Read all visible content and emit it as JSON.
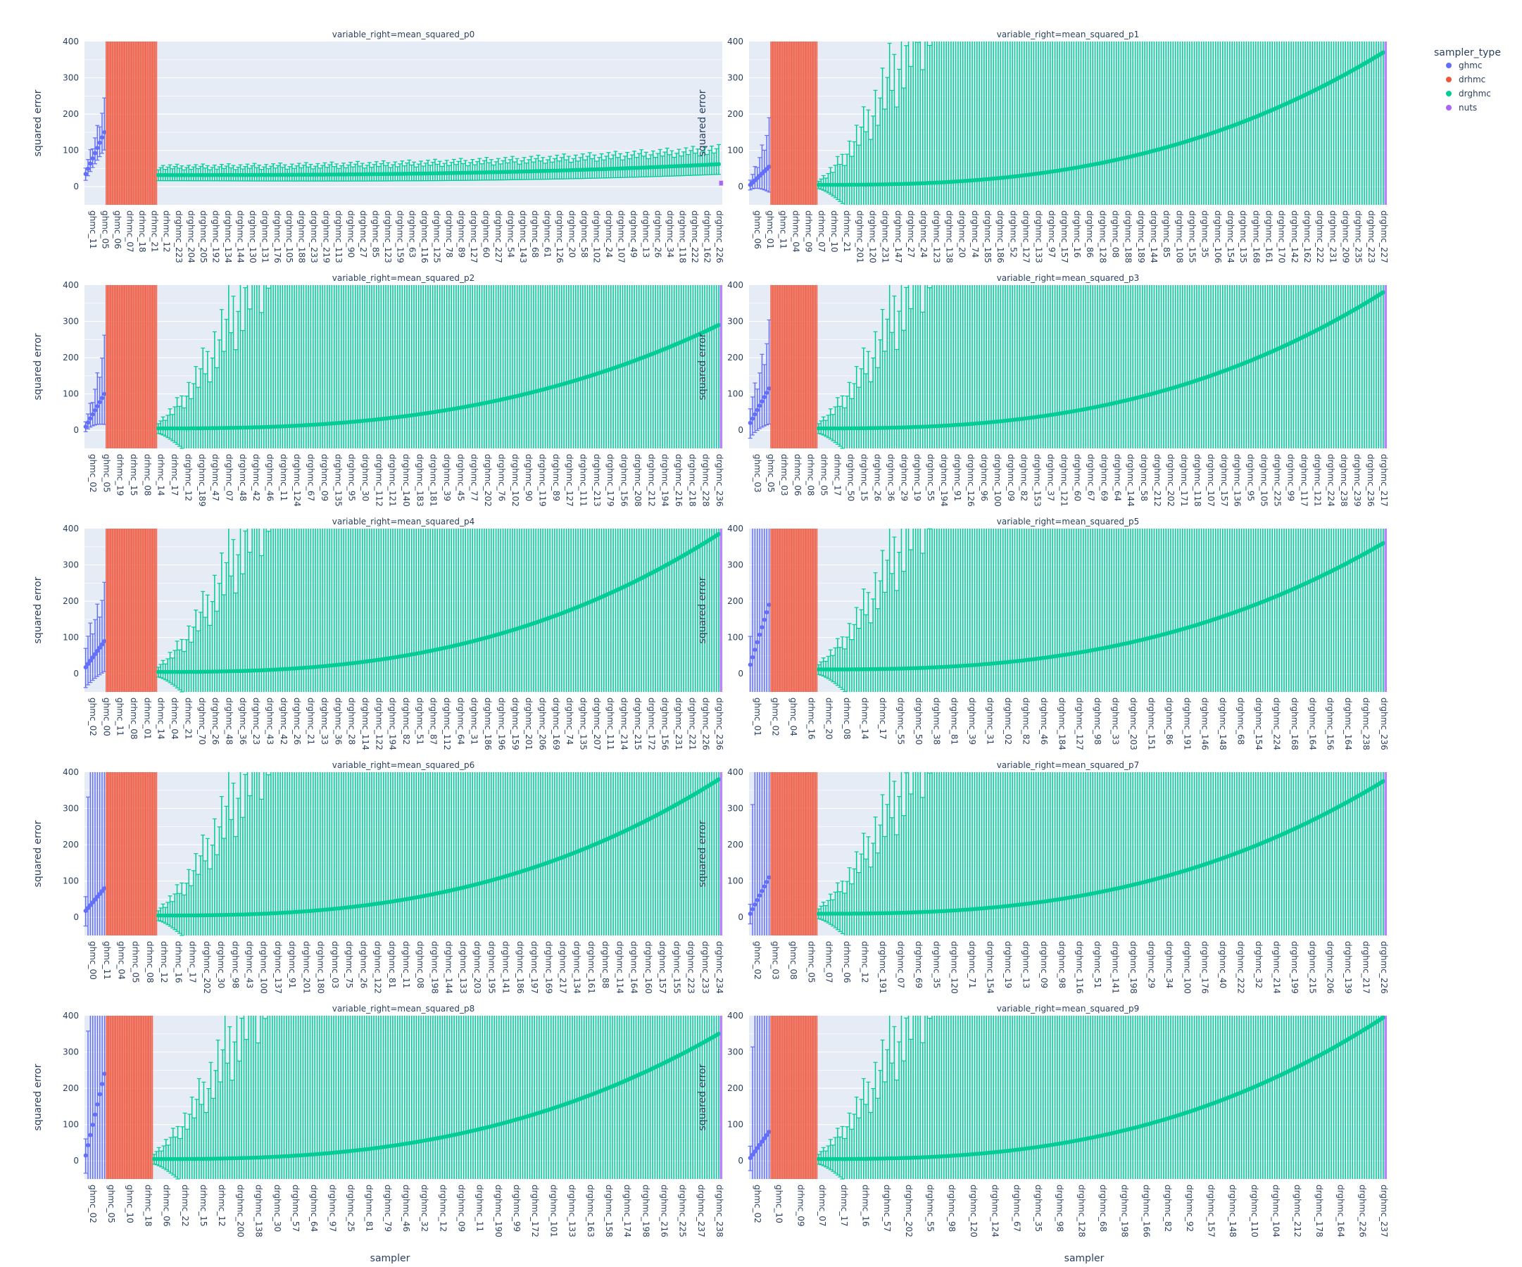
{
  "chart_data": {
    "type": "scatter",
    "subtype": "errorbar-facets",
    "xlabel": "sampler",
    "ylabel": "squared error",
    "ylim": [
      -50,
      400
    ],
    "yticks": [
      0,
      100,
      200,
      300,
      400
    ],
    "grid": true,
    "legend": {
      "title": "sampler_type",
      "placement": "top-right",
      "entries": [
        {
          "name": "ghmc",
          "color": "#636efa"
        },
        {
          "name": "drhmc",
          "color": "#EF553B"
        },
        {
          "name": "drghmc",
          "color": "#00cc96"
        },
        {
          "name": "nuts",
          "color": "#ab63fa"
        }
      ]
    },
    "panels": [
      {
        "title": "variable_right=mean_squared_p0",
        "tick_labels": [
          "ghmc_11",
          "ghmc_05",
          "ghmc_06",
          "drhmc_07",
          "drhmc_18",
          "drhmc_21",
          "drhmc_12",
          "drghmc_223",
          "drghmc_204",
          "drghmc_205",
          "drghmc_192",
          "drghmc_134",
          "drghmc_144",
          "drghmc_130",
          "drghmc_131",
          "drghmc_176",
          "drghmc_105",
          "drghmc_188",
          "drghmc_233",
          "drghmc_219",
          "drghmc_113",
          "drghmc_90",
          "drghmc_27",
          "drghmc_85",
          "drghmc_123",
          "drghmc_159",
          "drghmc_63",
          "drghmc_116",
          "drghmc_125",
          "drghmc_78",
          "drghmc_89",
          "drghmc_127",
          "drghmc_60",
          "drghmc_227",
          "drghmc_54",
          "drghmc_143",
          "drghmc_68",
          "drghmc_61",
          "drghmc_126",
          "drghmc_20",
          "drghmc_58",
          "drghmc_102",
          "drghmc_24",
          "drghmc_107",
          "drghmc_49",
          "drghmc_13",
          "drghmc_26",
          "drghmc_34",
          "drghmc_118",
          "drghmc_222",
          "drghmc_162",
          "drghmc_226"
        ],
        "groups": [
          {
            "type": "ghmc",
            "n": 9,
            "y0": 35,
            "y1": 150,
            "err0": 25,
            "err1": 70,
            "fill": false
          },
          {
            "type": "drhmc",
            "n": 22,
            "y0": 85,
            "y1": 235,
            "err0": 5000,
            "err1": 5000,
            "fill": true
          },
          {
            "type": "drghmc",
            "n": 240,
            "y0": 32,
            "y1": 62,
            "err0": 22,
            "err1": 40,
            "fill": false
          },
          {
            "type": "nuts",
            "n": 1,
            "y0": 10,
            "y1": 10,
            "err0": 8,
            "err1": 8,
            "fill": false
          }
        ]
      },
      {
        "title": "variable_right=mean_squared_p1",
        "tick_labels": [
          "ghmc_06",
          "ghmc_01",
          "ghmc_11",
          "drhmc_04",
          "drhmc_09",
          "drhmc_07",
          "drhmc_10",
          "drhmc_21",
          "drghmc_201",
          "drghmc_120",
          "drghmc_231",
          "drghmc_147",
          "drghmc_27",
          "drghmc_24",
          "drghmc_123",
          "drghmc_138",
          "drghmc_20",
          "drghmc_74",
          "drghmc_185",
          "drghmc_186",
          "drghmc_52",
          "drghmc_127",
          "drghmc_133",
          "drghmc_97",
          "drghmc_157",
          "drghmc_16",
          "drghmc_86",
          "drghmc_128",
          "drghmc_08",
          "drghmc_188",
          "drghmc_189",
          "drghmc_144",
          "drghmc_85",
          "drghmc_108",
          "drghmc_155",
          "drghmc_35",
          "drghmc_106",
          "drghmc_154",
          "drghmc_135",
          "drghmc_168",
          "drghmc_161",
          "drghmc_170",
          "drghmc_142",
          "drghmc_162",
          "drghmc_222",
          "drghmc_231",
          "drghmc_209",
          "drghmc_235",
          "drghmc_223",
          "drghmc_227"
        ],
        "groups": [
          {
            "type": "ghmc",
            "n": 9,
            "y0": 5,
            "y1": 55,
            "err0": 20,
            "err1": 100,
            "fill": false
          },
          {
            "type": "drhmc",
            "n": 20,
            "y0": 0,
            "y1": 0,
            "err0": 5000,
            "err1": 5000,
            "fill": true
          },
          {
            "type": "drghmc",
            "n": 240,
            "y0": 5,
            "y1": 370,
            "err0": 15,
            "err1": 5000,
            "fill": false
          },
          {
            "type": "nuts",
            "n": 1,
            "y0": 0,
            "y1": 0,
            "err0": 5000,
            "err1": 5000,
            "fill": true
          }
        ]
      },
      {
        "title": "variable_right=mean_squared_p2",
        "tick_labels": [
          "ghmc_02",
          "ghmc_05",
          "drhmc_19",
          "drhmc_15",
          "drhmc_08",
          "drhmc_14",
          "drhmc_17",
          "drghmc_12",
          "drghmc_189",
          "drghmc_47",
          "drghmc_07",
          "drghmc_48",
          "drghmc_42",
          "drghmc_46",
          "drghmc_11",
          "drghmc_124",
          "drghmc_67",
          "drghmc_09",
          "drghmc_135",
          "drghmc_95",
          "drghmc_30",
          "drghmc_112",
          "drghmc_121",
          "drghmc_140",
          "drghmc_183",
          "drghmc_181",
          "drghmc_39",
          "drghmc_45",
          "drghmc_77",
          "drghmc_202",
          "drghmc_76",
          "drghmc_102",
          "drghmc_90",
          "drghmc_119",
          "drghmc_89",
          "drghmc_127",
          "drghmc_111",
          "drghmc_213",
          "drghmc_179",
          "drghmc_156",
          "drghmc_208",
          "drghmc_212",
          "drghmc_194",
          "drghmc_216",
          "drghmc_218",
          "drghmc_228",
          "drghmc_236"
        ],
        "groups": [
          {
            "type": "ghmc",
            "n": 9,
            "y0": 10,
            "y1": 100,
            "err0": 20,
            "err1": 120,
            "fill": false
          },
          {
            "type": "drhmc",
            "n": 22,
            "y0": 0,
            "y1": 0,
            "err0": 5000,
            "err1": 5000,
            "fill": true
          },
          {
            "type": "drghmc",
            "n": 240,
            "y0": 5,
            "y1": 290,
            "err0": 20,
            "err1": 5000,
            "fill": false
          },
          {
            "type": "nuts",
            "n": 1,
            "y0": 0,
            "y1": 0,
            "err0": 5000,
            "err1": 5000,
            "fill": true
          }
        ]
      },
      {
        "title": "variable_right=mean_squared_p3",
        "tick_labels": [
          "ghmc_03",
          "ghmc_05",
          "drhmc_03",
          "drhmc_06",
          "drhmc_08",
          "drhmc_05",
          "drhmc_17",
          "drghmc_50",
          "drghmc_15",
          "drghmc_26",
          "drghmc_36",
          "drghmc_29",
          "drghmc_19",
          "drghmc_55",
          "drghmc_194",
          "drghmc_91",
          "drghmc_126",
          "drghmc_96",
          "drghmc_100",
          "drghmc_09",
          "drghmc_82",
          "drghmc_153",
          "drghmc_37",
          "drghmc_121",
          "drghmc_60",
          "drghmc_67",
          "drghmc_69",
          "drghmc_64",
          "drghmc_144",
          "drghmc_58",
          "drghmc_212",
          "drghmc_202",
          "drghmc_171",
          "drghmc_118",
          "drghmc_107",
          "drghmc_157",
          "drghmc_136",
          "drghmc_95",
          "drghmc_105",
          "drghmc_225",
          "drghmc_99",
          "drghmc_117",
          "drghmc_121",
          "drghmc_224",
          "drghmc_238",
          "drghmc_239",
          "drghmc_236",
          "drghmc_217"
        ],
        "groups": [
          {
            "type": "ghmc",
            "n": 9,
            "y0": 20,
            "y1": 115,
            "err0": 60,
            "err1": 140,
            "fill": false
          },
          {
            "type": "drhmc",
            "n": 20,
            "y0": 0,
            "y1": 0,
            "err0": 5000,
            "err1": 5000,
            "fill": true
          },
          {
            "type": "drghmc",
            "n": 240,
            "y0": 5,
            "y1": 380,
            "err0": 20,
            "err1": 5000,
            "fill": false
          },
          {
            "type": "nuts",
            "n": 1,
            "y0": 0,
            "y1": 0,
            "err0": 5000,
            "err1": 5000,
            "fill": true
          }
        ]
      },
      {
        "title": "variable_right=mean_squared_p4",
        "tick_labels": [
          "ghmc_02",
          "ghmc_00",
          "ghmc_11",
          "drhmc_08",
          "drhmc_01",
          "drhmc_14",
          "drhmc_04",
          "drhmc_21",
          "drghmc_70",
          "drghmc_26",
          "drghmc_48",
          "drghmc_36",
          "drghmc_23",
          "drghmc_43",
          "drghmc_42",
          "drghmc_26",
          "drghmc_21",
          "drghmc_33",
          "drghmc_36",
          "drghmc_28",
          "drghmc_114",
          "drghmc_122",
          "drghmc_194",
          "drghmc_82",
          "drghmc_51",
          "drghmc_87",
          "drghmc_112",
          "drghmc_64",
          "drghmc_31",
          "drghmc_186",
          "drghmc_196",
          "drghmc_159",
          "drghmc_201",
          "drghmc_206",
          "drghmc_169",
          "drghmc_74",
          "drghmc_135",
          "drghmc_207",
          "drghmc_111",
          "drghmc_214",
          "drghmc_215",
          "drghmc_172",
          "drghmc_156",
          "drghmc_231",
          "drghmc_221",
          "drghmc_226",
          "drghmc_236"
        ],
        "groups": [
          {
            "type": "ghmc",
            "n": 9,
            "y0": 18,
            "y1": 90,
            "err0": 80,
            "err1": 120,
            "fill": false
          },
          {
            "type": "drhmc",
            "n": 22,
            "y0": 0,
            "y1": 0,
            "err0": 5000,
            "err1": 5000,
            "fill": true
          },
          {
            "type": "drghmc",
            "n": 240,
            "y0": 5,
            "y1": 385,
            "err0": 20,
            "err1": 5000,
            "fill": false
          },
          {
            "type": "nuts",
            "n": 1,
            "y0": 0,
            "y1": 0,
            "err0": 5000,
            "err1": 5000,
            "fill": true
          }
        ]
      },
      {
        "title": "variable_right=mean_squared_p5",
        "tick_labels": [
          "ghmc_01",
          "ghmc_02",
          "ghmc_04",
          "drhmc_16",
          "drhmc_20",
          "drhmc_08",
          "drhmc_14",
          "drhmc_17",
          "drghmc_55",
          "drghmc_50",
          "drghmc_38",
          "drghmc_81",
          "drghmc_39",
          "drghmc_31",
          "drghmc_02",
          "drghmc_82",
          "drghmc_46",
          "drghmc_184",
          "drghmc_127",
          "drghmc_98",
          "drghmc_33",
          "drghmc_203",
          "drghmc_151",
          "drghmc_86",
          "drghmc_191",
          "drghmc_146",
          "drghmc_148",
          "drghmc_68",
          "drghmc_154",
          "drghmc_224",
          "drghmc_168",
          "drghmc_164",
          "drghmc_156",
          "drghmc_164",
          "drghmc_238",
          "drghmc_236"
        ],
        "groups": [
          {
            "type": "ghmc",
            "n": 9,
            "y0": 25,
            "y1": 190,
            "err0": 120,
            "err1": 5000,
            "fill": false
          },
          {
            "type": "drhmc",
            "n": 20,
            "y0": 0,
            "y1": 0,
            "err0": 5000,
            "err1": 5000,
            "fill": true
          },
          {
            "type": "drghmc",
            "n": 240,
            "y0": 12,
            "y1": 360,
            "err0": 20,
            "err1": 5000,
            "fill": false
          },
          {
            "type": "nuts",
            "n": 1,
            "y0": 0,
            "y1": 0,
            "err0": 5000,
            "err1": 5000,
            "fill": true
          }
        ]
      },
      {
        "title": "variable_right=mean_squared_p6",
        "tick_labels": [
          "ghmc_00",
          "ghmc_11",
          "ghmc_04",
          "drhmc_05",
          "drhmc_08",
          "drhmc_12",
          "drhmc_16",
          "drhmc_17",
          "drghmc_202",
          "drghmc_30",
          "drghmc_98",
          "drghmc_43",
          "drghmc_100",
          "drghmc_137",
          "drghmc_91",
          "drghmc_201",
          "drghmc_180",
          "drghmc_03",
          "drghmc_75",
          "drghmc_26",
          "drghmc_122",
          "drghmc_81",
          "drghmc_11",
          "drghmc_08",
          "drghmc_198",
          "drghmc_144",
          "drghmc_133",
          "drghmc_203",
          "drghmc_195",
          "drghmc_141",
          "drghmc_186",
          "drghmc_197",
          "drghmc_169",
          "drghmc_217",
          "drghmc_134",
          "drghmc_161",
          "drghmc_88",
          "drghmc_114",
          "drghmc_164",
          "drghmc_160",
          "drghmc_157",
          "drghmc_155",
          "drghmc_223",
          "drghmc_233",
          "drghmc_234"
        ],
        "groups": [
          {
            "type": "ghmc",
            "n": 9,
            "y0": 18,
            "y1": 80,
            "err0": 60,
            "err1": 5000,
            "fill": false
          },
          {
            "type": "drhmc",
            "n": 22,
            "y0": 0,
            "y1": 0,
            "err0": 5000,
            "err1": 5000,
            "fill": true
          },
          {
            "type": "drghmc",
            "n": 240,
            "y0": 5,
            "y1": 380,
            "err0": 20,
            "err1": 5000,
            "fill": false
          },
          {
            "type": "nuts",
            "n": 1,
            "y0": 0,
            "y1": 0,
            "err0": 5000,
            "err1": 5000,
            "fill": true
          }
        ]
      },
      {
        "title": "variable_right=mean_squared_p7",
        "tick_labels": [
          "ghmc_02",
          "ghmc_03",
          "ghmc_08",
          "drhmc_05",
          "drhmc_07",
          "drhmc_06",
          "drhmc_12",
          "drghmc_191",
          "drghmc_07",
          "drghmc_69",
          "drghmc_35",
          "drghmc_120",
          "drghmc_71",
          "drghmc_154",
          "drghmc_19",
          "drghmc_13",
          "drghmc_09",
          "drghmc_98",
          "drghmc_116",
          "drghmc_51",
          "drghmc_141",
          "drghmc_198",
          "drghmc_29",
          "drghmc_34",
          "drghmc_100",
          "drghmc_176",
          "drghmc_40",
          "drghmc_222",
          "drghmc_32",
          "drghmc_214",
          "drghmc_199",
          "drghmc_215",
          "drghmc_206",
          "drghmc_139",
          "drghmc_217",
          "drghmc_226"
        ],
        "groups": [
          {
            "type": "ghmc",
            "n": 9,
            "y0": 10,
            "y1": 110,
            "err0": 40,
            "err1": 5000,
            "fill": false
          },
          {
            "type": "drhmc",
            "n": 20,
            "y0": 0,
            "y1": 0,
            "err0": 5000,
            "err1": 5000,
            "fill": true
          },
          {
            "type": "drghmc",
            "n": 240,
            "y0": 10,
            "y1": 375,
            "err0": 20,
            "err1": 5000,
            "fill": false
          },
          {
            "type": "nuts",
            "n": 1,
            "y0": 0,
            "y1": 0,
            "err0": 5000,
            "err1": 5000,
            "fill": true
          }
        ]
      },
      {
        "title": "variable_right=mean_squared_p8",
        "tick_labels": [
          "ghmc_02",
          "ghmc_05",
          "ghmc_10",
          "drhmc_18",
          "drhmc_06",
          "drhmc_22",
          "drhmc_15",
          "drhmc_12",
          "drghmc_200",
          "drghmc_138",
          "drghmc_30",
          "drghmc_57",
          "drghmc_64",
          "drghmc_97",
          "drghmc_25",
          "drghmc_81",
          "drghmc_79",
          "drghmc_46",
          "drghmc_32",
          "drghmc_12",
          "drghmc_09",
          "drghmc_11",
          "drghmc_190",
          "drghmc_99",
          "drghmc_172",
          "drghmc_101",
          "drghmc_133",
          "drghmc_163",
          "drghmc_158",
          "drghmc_174",
          "drghmc_198",
          "drghmc_216",
          "drghmc_225",
          "drghmc_237",
          "drghmc_238"
        ],
        "groups": [
          {
            "type": "ghmc",
            "n": 9,
            "y0": 15,
            "y1": 240,
            "err0": 70,
            "err1": 5000,
            "fill": false
          },
          {
            "type": "drhmc",
            "n": 20,
            "y0": 0,
            "y1": 0,
            "err0": 5000,
            "err1": 5000,
            "fill": true
          },
          {
            "type": "drghmc",
            "n": 240,
            "y0": 5,
            "y1": 350,
            "err0": 20,
            "err1": 5000,
            "fill": false
          },
          {
            "type": "nuts",
            "n": 1,
            "y0": 0,
            "y1": 0,
            "err0": 5000,
            "err1": 5000,
            "fill": true
          }
        ]
      },
      {
        "title": "variable_right=mean_squared_p9",
        "tick_labels": [
          "ghmc_02",
          "ghmc_10",
          "drhmc_09",
          "drhmc_07",
          "drhmc_17",
          "drhmc_16",
          "drghmc_57",
          "drghmc_202",
          "drghmc_55",
          "drghmc_98",
          "drghmc_120",
          "drghmc_124",
          "drghmc_67",
          "drghmc_35",
          "drghmc_98",
          "drghmc_128",
          "drghmc_68",
          "drghmc_198",
          "drghmc_166",
          "drghmc_82",
          "drghmc_92",
          "drghmc_157",
          "drghmc_148",
          "drghmc_110",
          "drghmc_104",
          "drghmc_212",
          "drghmc_178",
          "drghmc_164",
          "drghmc_226",
          "drghmc_237"
        ],
        "groups": [
          {
            "type": "ghmc",
            "n": 9,
            "y0": 8,
            "y1": 80,
            "err0": 50,
            "err1": 5000,
            "fill": false
          },
          {
            "type": "drhmc",
            "n": 20,
            "y0": 0,
            "y1": 0,
            "err0": 5000,
            "err1": 5000,
            "fill": true
          },
          {
            "type": "drghmc",
            "n": 240,
            "y0": 5,
            "y1": 395,
            "err0": 20,
            "err1": 5000,
            "fill": false
          },
          {
            "type": "nuts",
            "n": 1,
            "y0": 0,
            "y1": 0,
            "err0": 5000,
            "err1": 5000,
            "fill": true
          }
        ]
      }
    ]
  }
}
